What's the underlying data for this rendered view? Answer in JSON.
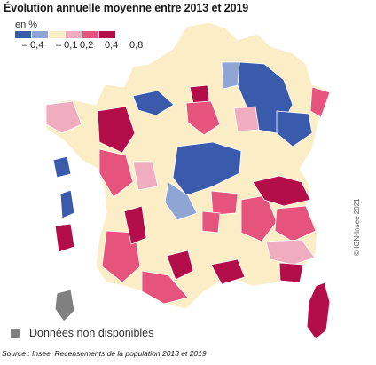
{
  "title": "Évolution annuelle moyenne entre 2013 et 2019",
  "legend": {
    "unit": "en %",
    "classes": [
      {
        "color": "#3a5bab"
      },
      {
        "color": "#8fa6d4"
      },
      {
        "color": "#fbedc5"
      },
      {
        "color": "#f1adc0"
      },
      {
        "color": "#e6537d"
      },
      {
        "color": "#b30d4a"
      }
    ],
    "ticks": [
      "– 0,4",
      "– 0,1",
      "0,2",
      "0,4",
      "0,8"
    ]
  },
  "no_data": {
    "label": "Données non disponibles",
    "color": "#808080"
  },
  "credit": "© IGN-Insee 2021",
  "source": "Source : Insee, Recensements de la population 2013 et 2019",
  "map": {
    "land_color": "#fbedc5",
    "regions": [
      {
        "name": "nord-est-declin",
        "class": 0
      },
      {
        "name": "centre-declin",
        "class": 0
      },
      {
        "name": "bretagne-ouest",
        "class": 5
      },
      {
        "name": "alpes",
        "class": 5
      },
      {
        "name": "corse",
        "class": 5
      },
      {
        "name": "outre-mer-no-data",
        "class": -1
      }
    ]
  }
}
